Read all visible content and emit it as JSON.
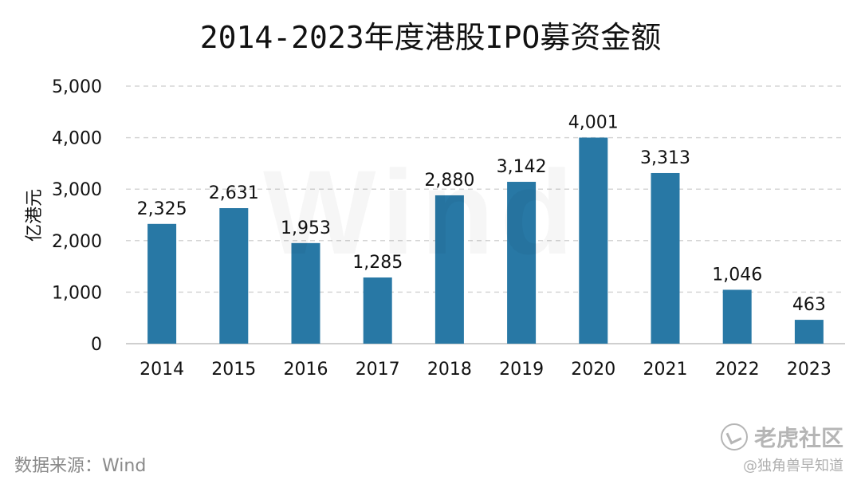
{
  "chart_data": {
    "type": "bar",
    "title": "2014-2023年度港股IPO募资金额",
    "ylabel": "亿港元",
    "xlabel": "",
    "categories": [
      "2014",
      "2015",
      "2016",
      "2017",
      "2018",
      "2019",
      "2020",
      "2021",
      "2022",
      "2023"
    ],
    "values": [
      2325,
      2631,
      1953,
      1285,
      2880,
      3142,
      4001,
      3313,
      1046,
      463
    ],
    "value_labels": [
      "2,325",
      "2,631",
      "1,953",
      "1,285",
      "2,880",
      "3,142",
      "4,001",
      "3,313",
      "1,046",
      "463"
    ],
    "ylim": [
      0,
      5000
    ],
    "yticks": [
      0,
      1000,
      2000,
      3000,
      4000,
      5000
    ],
    "ytick_labels": [
      "0",
      "1,000",
      "2,000",
      "3,000",
      "4,000",
      "5,000"
    ],
    "grid": true,
    "legend": "none",
    "bar_color": "#2878a5"
  },
  "watermark": "Wind",
  "source": "数据来源：Wind",
  "brand": {
    "name": "老虎社区",
    "handle": "@独角兽早知道"
  }
}
